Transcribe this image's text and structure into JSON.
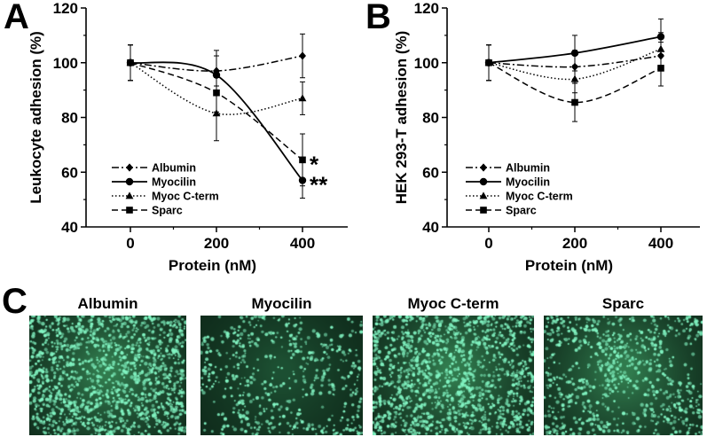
{
  "panels": {
    "a": "A",
    "b": "B",
    "c": "C"
  },
  "chart_data": [
    {
      "type": "line",
      "panel": "A",
      "xlabel": "Protein (nM)",
      "ylabel": "Leukocyte adhesion (%)",
      "x": [
        0,
        200,
        400
      ],
      "xticks": [
        "0",
        "200",
        "400"
      ],
      "ylim": [
        40,
        120
      ],
      "yticks": [
        "40",
        "60",
        "80",
        "100",
        "120"
      ],
      "grid": false,
      "legend_position": "bottom-left",
      "series": [
        {
          "name": "Albumin",
          "values": [
            100,
            97,
            102.5
          ],
          "errors": [
            6.5,
            7.5,
            8
          ],
          "marker": "diamond",
          "dash": "dashdot"
        },
        {
          "name": "Myocilin",
          "values": [
            100,
            95.5,
            57
          ],
          "errors": [
            6.5,
            7,
            6.5
          ],
          "marker": "circle",
          "dash": "solid"
        },
        {
          "name": "Myoc C-term",
          "values": [
            100,
            81.5,
            87
          ],
          "errors": [
            6.5,
            10,
            6
          ],
          "marker": "triangle",
          "dash": "dotted"
        },
        {
          "name": "Sparc",
          "values": [
            100,
            89,
            64.5
          ],
          "errors": [
            6.5,
            7,
            9.5
          ],
          "marker": "square",
          "dash": "dashed"
        }
      ],
      "annotations": [
        {
          "text": "*",
          "x": 400,
          "y": 64.5
        },
        {
          "text": "**",
          "x": 400,
          "y": 57
        }
      ]
    },
    {
      "type": "line",
      "panel": "B",
      "xlabel": "Protein (nM)",
      "ylabel": "HEK 293-T adhesion (%)",
      "x": [
        0,
        200,
        400
      ],
      "xticks": [
        "0",
        "200",
        "400"
      ],
      "ylim": [
        40,
        120
      ],
      "yticks": [
        "40",
        "60",
        "80",
        "100",
        "120"
      ],
      "grid": false,
      "legend_position": "bottom-left",
      "series": [
        {
          "name": "Albumin",
          "values": [
            100,
            98.5,
            102.5
          ],
          "errors": [
            6.5,
            6,
            5
          ],
          "marker": "diamond",
          "dash": "dashdot"
        },
        {
          "name": "Myocilin",
          "values": [
            100,
            103.5,
            109.5
          ],
          "errors": [
            6.5,
            6.5,
            6.5
          ],
          "marker": "circle",
          "dash": "solid"
        },
        {
          "name": "Myoc C-term",
          "values": [
            100,
            94,
            105
          ],
          "errors": [
            6.5,
            5,
            6
          ],
          "marker": "triangle",
          "dash": "dotted"
        },
        {
          "name": "Sparc",
          "values": [
            100,
            85.5,
            98
          ],
          "errors": [
            6.5,
            7,
            6.5
          ],
          "marker": "square",
          "dash": "dashed"
        }
      ],
      "annotations": []
    }
  ],
  "micrographs": [
    {
      "label": "Albumin",
      "density": "high"
    },
    {
      "label": "Myocilin",
      "density": "low"
    },
    {
      "label": "Myoc C-term",
      "density": "high"
    },
    {
      "label": "Sparc",
      "density": "medium"
    }
  ],
  "colors": {
    "micrograph_bg": "#0f2a1a",
    "cell": "#7ff0c0"
  }
}
